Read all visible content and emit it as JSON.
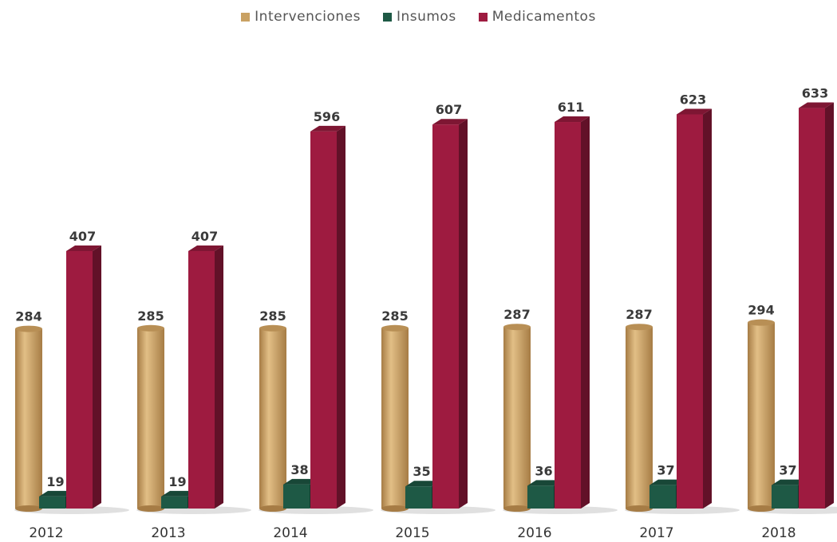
{
  "chart_data": {
    "type": "bar",
    "title": "",
    "xlabel": "",
    "ylabel": "",
    "categories": [
      "2012",
      "2013",
      "2014",
      "2015",
      "2016",
      "2017",
      "2018"
    ],
    "series": [
      {
        "name": "Intervenciones",
        "color": "#c9a163",
        "values": [
          284,
          285,
          285,
          285,
          287,
          287,
          294
        ]
      },
      {
        "name": "Insumos",
        "color": "#1e5945",
        "values": [
          19,
          19,
          38,
          35,
          36,
          37,
          37
        ]
      },
      {
        "name": "Medicamentos",
        "color": "#9e1b40",
        "values": [
          407,
          407,
          596,
          607,
          611,
          623,
          633
        ]
      }
    ],
    "ylim": [
      0,
      640
    ],
    "legend": "top-center",
    "grid": false
  }
}
